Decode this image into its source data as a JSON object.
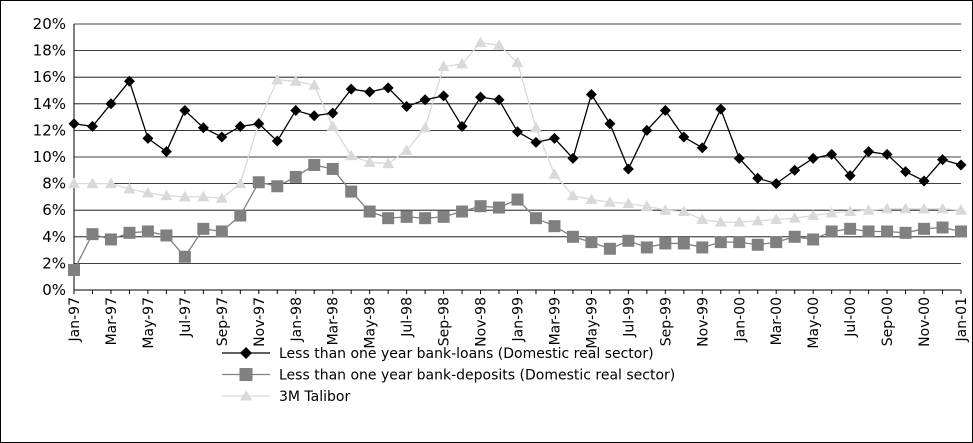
{
  "chart_data": {
    "type": "line",
    "title": "",
    "xlabel": "",
    "ylabel": "",
    "ylim": [
      0,
      20
    ],
    "y_ticks": [
      "0%",
      "2%",
      "4%",
      "6%",
      "8%",
      "10%",
      "12%",
      "14%",
      "16%",
      "18%",
      "20%"
    ],
    "grid": "horizontal",
    "legend_position": "bottom",
    "x_tick_labels": [
      "Jan-97",
      "Mar-97",
      "May-97",
      "Jul-97",
      "Sep-97",
      "Nov-97",
      "Jan-98",
      "Mar-98",
      "May-98",
      "Jul-98",
      "Sep-98",
      "Nov-98",
      "Jan-99",
      "Mar-99",
      "May-99",
      "Jul-99",
      "Sep-99",
      "Nov-99",
      "Jan-00",
      "Mar-00",
      "May-00",
      "Jul-00",
      "Sep-00",
      "Nov-00",
      "Jan-01"
    ],
    "categories": [
      "Jan-97",
      "Feb-97",
      "Mar-97",
      "Apr-97",
      "May-97",
      "Jun-97",
      "Jul-97",
      "Aug-97",
      "Sep-97",
      "Oct-97",
      "Nov-97",
      "Dec-97",
      "Jan-98",
      "Feb-98",
      "Mar-98",
      "Apr-98",
      "May-98",
      "Jun-98",
      "Jul-98",
      "Aug-98",
      "Sep-98",
      "Oct-98",
      "Nov-98",
      "Dec-98",
      "Jan-99",
      "Feb-99",
      "Mar-99",
      "Apr-99",
      "May-99",
      "Jun-99",
      "Jul-99",
      "Aug-99",
      "Sep-99",
      "Oct-99",
      "Nov-99",
      "Dec-99",
      "Jan-00",
      "Feb-00",
      "Mar-00",
      "Apr-00",
      "May-00",
      "Jun-00",
      "Jul-00",
      "Aug-00",
      "Sep-00",
      "Oct-00",
      "Nov-00",
      "Dec-00",
      "Jan-01"
    ],
    "series": [
      {
        "name": "Less than one year bank-loans (Domestic real sector)",
        "color": "#000000",
        "marker": "diamond",
        "values": [
          12.5,
          12.3,
          14.0,
          15.7,
          11.4,
          10.4,
          13.5,
          12.2,
          11.5,
          12.3,
          12.5,
          11.2,
          13.5,
          13.1,
          13.3,
          15.1,
          14.9,
          15.2,
          13.8,
          14.3,
          14.6,
          12.3,
          14.5,
          14.3,
          11.9,
          11.1,
          11.4,
          9.9,
          14.7,
          12.5,
          9.1,
          12.0,
          13.5,
          11.5,
          10.7,
          13.6,
          9.9,
          8.4,
          8.0,
          9.0,
          9.9,
          10.2,
          8.6,
          10.4,
          10.2,
          8.9,
          8.2,
          9.8,
          9.4
        ]
      },
      {
        "name": "Less than one year bank-deposits (Domestic real sector)",
        "color": "#808080",
        "marker": "square",
        "values": [
          1.5,
          4.2,
          3.8,
          4.3,
          4.4,
          4.1,
          2.5,
          4.6,
          4.4,
          5.6,
          8.1,
          7.8,
          8.5,
          9.4,
          9.1,
          7.4,
          5.9,
          5.4,
          5.5,
          5.4,
          5.5,
          5.9,
          6.3,
          6.2,
          6.8,
          5.4,
          4.8,
          4.0,
          3.6,
          3.1,
          3.7,
          3.2,
          3.5,
          3.5,
          3.2,
          3.6,
          3.6,
          3.4,
          3.6,
          4.0,
          3.8,
          4.4,
          4.6,
          4.4,
          4.4,
          4.3,
          4.6,
          4.7,
          4.4
        ]
      },
      {
        "name": "3M Talibor",
        "color": "#d9d9d9",
        "marker": "triangle",
        "values": [
          8.0,
          8.0,
          8.0,
          7.6,
          7.3,
          7.1,
          7.0,
          7.0,
          6.9,
          8.0,
          12.6,
          15.8,
          15.7,
          15.4,
          12.3,
          10.1,
          9.6,
          9.5,
          10.5,
          12.2,
          16.8,
          17.0,
          18.6,
          18.4,
          17.1,
          12.2,
          8.7,
          7.1,
          6.8,
          6.6,
          6.5,
          6.3,
          6.0,
          5.9,
          5.3,
          5.1,
          5.1,
          5.2,
          5.3,
          5.4,
          5.6,
          5.8,
          5.9,
          6.0,
          6.1,
          6.1,
          6.1,
          6.1,
          6.0
        ]
      }
    ]
  }
}
